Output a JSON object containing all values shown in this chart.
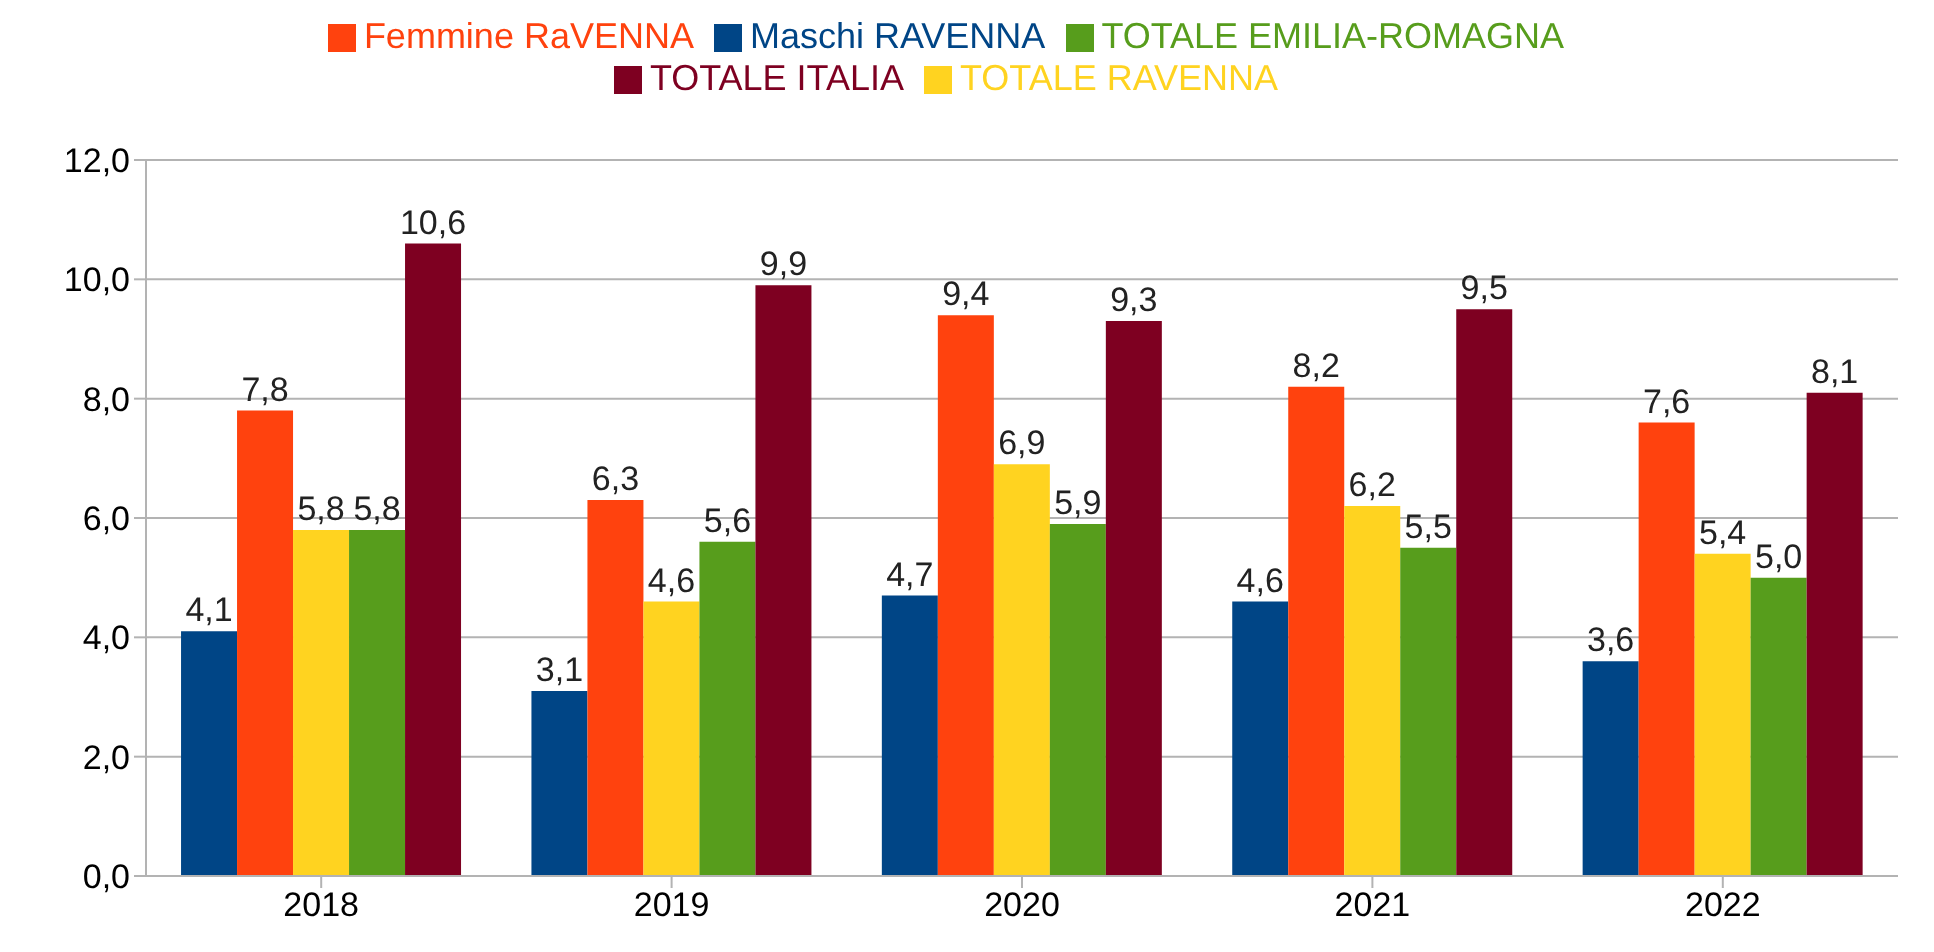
{
  "chart_data": {
    "type": "bar",
    "categories": [
      "2018",
      "2019",
      "2020",
      "2021",
      "2022"
    ],
    "series": [
      {
        "name": "Maschi RAVENNA",
        "color": "#004586",
        "values": [
          4.1,
          3.1,
          4.7,
          4.6,
          3.6
        ],
        "value_labels": [
          "4,1",
          "3,1",
          "4,7",
          "4,6",
          "3,6"
        ]
      },
      {
        "name": "Femmine RaVENNA",
        "color": "#ff420e",
        "values": [
          7.8,
          6.3,
          9.4,
          8.2,
          7.6
        ],
        "value_labels": [
          "7,8",
          "6,3",
          "9,4",
          "8,2",
          "7,6"
        ]
      },
      {
        "name": "TOTALE RAVENNA",
        "color": "#ffd320",
        "values": [
          5.8,
          4.6,
          6.9,
          6.2,
          5.4
        ],
        "value_labels": [
          "5,8",
          "4,6",
          "6,9",
          "6,2",
          "5,4"
        ]
      },
      {
        "name": "TOTALE EMILIA-ROMAGNA",
        "color": "#579d1c",
        "values": [
          5.8,
          5.6,
          5.9,
          5.5,
          5.0
        ],
        "value_labels": [
          "5,8",
          "5,6",
          "5,9",
          "5,5",
          "5,0"
        ]
      },
      {
        "name": "TOTALE ITALIA",
        "color": "#7e0021",
        "values": [
          10.6,
          9.9,
          9.3,
          9.5,
          8.1
        ],
        "value_labels": [
          "10,6",
          "9,9",
          "9,3",
          "9,5",
          "8,1"
        ]
      }
    ],
    "ylim": [
      0,
      12
    ],
    "yticks": [
      {
        "value": 0,
        "label": "0,0"
      },
      {
        "value": 2,
        "label": "2,0"
      },
      {
        "value": 4,
        "label": "4,0"
      },
      {
        "value": 6,
        "label": "6,0"
      },
      {
        "value": 8,
        "label": "8,0"
      },
      {
        "value": 10,
        "label": "10,0"
      },
      {
        "value": 12,
        "label": "12,0"
      }
    ],
    "grid": "y",
    "legend": "top"
  }
}
